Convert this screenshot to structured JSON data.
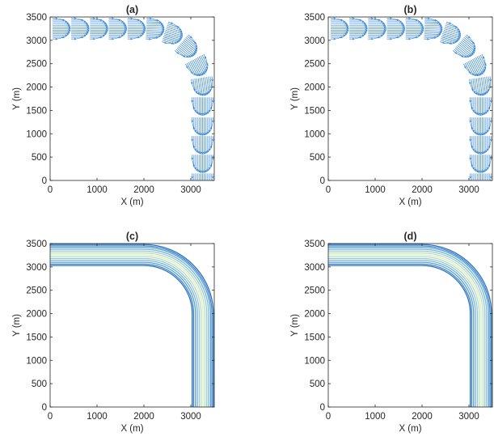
{
  "chart_data": [
    {
      "type": "vector-field",
      "title": "(a)",
      "xlabel": "X (m)",
      "ylabel": "Y (m)",
      "xlim": [
        0,
        3500
      ],
      "ylim": [
        0,
        3500
      ],
      "xticks": [
        "0",
        "1000",
        "2000",
        "3000"
      ],
      "xtick_values": [
        0,
        1000,
        2000,
        3000
      ],
      "yticks": [
        "0",
        "500",
        "1000",
        "1500",
        "2000",
        "2500",
        "3000",
        "3500"
      ],
      "ytick_values": [
        0,
        500,
        1000,
        1500,
        2000,
        2500,
        3000,
        3500
      ],
      "color": "#2b7fd1",
      "centerline": {
        "straight_y": 3250,
        "straight_x_end": 2000,
        "corner_center": [
          2000,
          2000
        ],
        "radius": 1250,
        "straight_x": 3250,
        "straight_y_end": 2000
      },
      "channel_half_width": 220,
      "profile_stations": [
        {
          "x": 50,
          "y": 3250,
          "angle_deg": 0
        },
        {
          "x": 450,
          "y": 3250,
          "angle_deg": 0
        },
        {
          "x": 850,
          "y": 3250,
          "angle_deg": 0
        },
        {
          "x": 1250,
          "y": 3250,
          "angle_deg": 0
        },
        {
          "x": 1650,
          "y": 3250,
          "angle_deg": 0
        },
        {
          "x": 2050,
          "y": 3250,
          "angle_deg": -2
        },
        {
          "x": 2450,
          "y": 3180,
          "angle_deg": -18
        },
        {
          "x": 2800,
          "y": 2950,
          "angle_deg": -40
        },
        {
          "x": 3080,
          "y": 2600,
          "angle_deg": -62
        },
        {
          "x": 3230,
          "y": 2200,
          "angle_deg": -82
        },
        {
          "x": 3250,
          "y": 1780,
          "angle_deg": -90
        },
        {
          "x": 3250,
          "y": 1350,
          "angle_deg": -90
        },
        {
          "x": 3250,
          "y": 950,
          "angle_deg": -90
        },
        {
          "x": 3250,
          "y": 550,
          "angle_deg": -90
        },
        {
          "x": 3250,
          "y": 150,
          "angle_deg": -90
        }
      ]
    },
    {
      "type": "vector-field",
      "title": "(b)",
      "xlabel": "X (m)",
      "ylabel": "Y (m)",
      "xlim": [
        0,
        3500
      ],
      "ylim": [
        0,
        3500
      ],
      "xticks": [
        "0",
        "1000",
        "2000",
        "3000"
      ],
      "xtick_values": [
        0,
        1000,
        2000,
        3000
      ],
      "yticks": [
        "0",
        "500",
        "1000",
        "1500",
        "2000",
        "2500",
        "3000",
        "3500"
      ],
      "ytick_values": [
        0,
        500,
        1000,
        1500,
        2000,
        2500,
        3000,
        3500
      ],
      "color": "#2b7fd1",
      "centerline": {
        "straight_y": 3250,
        "straight_x_end": 2000,
        "corner_center": [
          2000,
          2000
        ],
        "radius": 1250,
        "straight_x": 3250,
        "straight_y_end": 2000
      },
      "channel_half_width": 220,
      "profile_stations": [
        {
          "x": 50,
          "y": 3250,
          "angle_deg": 0
        },
        {
          "x": 450,
          "y": 3250,
          "angle_deg": 0
        },
        {
          "x": 850,
          "y": 3250,
          "angle_deg": 0
        },
        {
          "x": 1250,
          "y": 3250,
          "angle_deg": 0
        },
        {
          "x": 1650,
          "y": 3250,
          "angle_deg": 0
        },
        {
          "x": 2050,
          "y": 3250,
          "angle_deg": -2
        },
        {
          "x": 2450,
          "y": 3180,
          "angle_deg": -18
        },
        {
          "x": 2800,
          "y": 2950,
          "angle_deg": -40
        },
        {
          "x": 3080,
          "y": 2600,
          "angle_deg": -62
        },
        {
          "x": 3230,
          "y": 2200,
          "angle_deg": -82
        },
        {
          "x": 3250,
          "y": 1780,
          "angle_deg": -90
        },
        {
          "x": 3250,
          "y": 1350,
          "angle_deg": -90
        },
        {
          "x": 3250,
          "y": 950,
          "angle_deg": -90
        },
        {
          "x": 3250,
          "y": 550,
          "angle_deg": -90
        },
        {
          "x": 3250,
          "y": 150,
          "angle_deg": -90
        }
      ]
    },
    {
      "type": "contour",
      "title": "(c)",
      "xlabel": "X (m)",
      "ylabel": "Y (m)",
      "xlim": [
        0,
        3500
      ],
      "ylim": [
        0,
        3500
      ],
      "xticks": [
        "0",
        "1000",
        "2000",
        "3000"
      ],
      "xtick_values": [
        0,
        1000,
        2000,
        3000
      ],
      "yticks": [
        "0",
        "500",
        "1000",
        "1500",
        "2000",
        "2500",
        "3000",
        "3500"
      ],
      "ytick_values": [
        0,
        500,
        1000,
        1500,
        2000,
        2500,
        3000,
        3500
      ],
      "corner_center": [
        2000,
        2000
      ],
      "contour_radii": [
        1030,
        1060,
        1100,
        1140,
        1180,
        1220,
        1260,
        1300,
        1340,
        1380,
        1420,
        1450,
        1480
      ],
      "contour_colors": [
        "#2a6fbf",
        "#3f86c8",
        "#5a9dd0",
        "#76b4d6",
        "#93c8d8",
        "#b3dbd3",
        "#e5efa0",
        "#b9dfcc",
        "#96cbd6",
        "#78b6d6",
        "#5c9fd1",
        "#4187c9",
        "#2b70bf"
      ]
    },
    {
      "type": "contour",
      "title": "(d)",
      "xlabel": "X (m)",
      "ylabel": "Y (m)",
      "xlim": [
        0,
        3500
      ],
      "ylim": [
        0,
        3500
      ],
      "xticks": [
        "0",
        "1000",
        "2000",
        "3000"
      ],
      "xtick_values": [
        0,
        1000,
        2000,
        3000
      ],
      "yticks": [
        "0",
        "500",
        "1000",
        "1500",
        "2000",
        "2500",
        "3000",
        "3500"
      ],
      "ytick_values": [
        0,
        500,
        1000,
        1500,
        2000,
        2500,
        3000,
        3500
      ],
      "corner_center": [
        2000,
        2000
      ],
      "contour_radii": [
        1030,
        1060,
        1100,
        1140,
        1180,
        1220,
        1260,
        1300,
        1340,
        1380,
        1420,
        1450,
        1480
      ],
      "contour_colors": [
        "#2a6fbf",
        "#3f86c8",
        "#5a9dd0",
        "#76b4d6",
        "#93c8d8",
        "#b3dbd3",
        "#e5efa0",
        "#b9dfcc",
        "#96cbd6",
        "#78b6d6",
        "#5c9fd1",
        "#4187c9",
        "#2b70bf"
      ]
    }
  ]
}
